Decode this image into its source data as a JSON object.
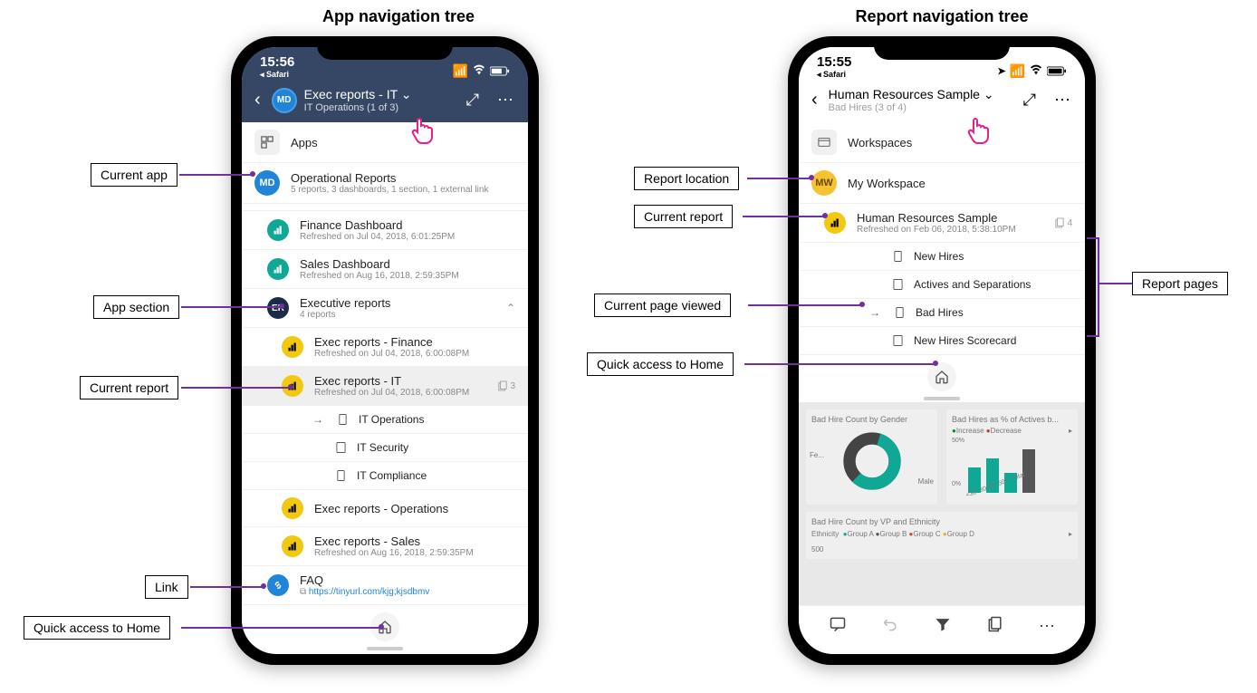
{
  "colors": {
    "header_dark": "#364765",
    "accent_purple": "#7030a0",
    "teal": "#0ea894",
    "yellow": "#f2c811",
    "blue": "#2084d8"
  },
  "titles": {
    "left": "App navigation tree",
    "right": "Report navigation tree"
  },
  "callouts": {
    "current_app": "Current app",
    "app_section": "App section",
    "current_report_left": "Current report",
    "link": "Link",
    "home_left": "Quick access to Home",
    "report_location": "Report location",
    "current_report_right": "Current report",
    "current_page": "Current page viewed",
    "home_right": "Quick access to Home",
    "report_pages": "Report pages"
  },
  "phone1": {
    "status": {
      "time": "15:56",
      "safari": "◂ Safari"
    },
    "header": {
      "avatar": "MD",
      "title": "Exec reports - IT ⌄",
      "subtitle": "IT Operations (1 of 3)"
    },
    "apps_label": "Apps",
    "current_app": {
      "avatar": "MD",
      "title": "Operational Reports",
      "subtitle": "5 reports, 3 dashboards, 1 section, 1 external link"
    },
    "dashboards": [
      {
        "title": "Finance Dashboard",
        "subtitle": "Refreshed on Jul 04, 2018, 6:01:25PM"
      },
      {
        "title": "Sales Dashboard",
        "subtitle": "Refreshed on Aug 16, 2018, 2:59:35PM"
      }
    ],
    "section": {
      "avatar": "ER",
      "title": "Executive reports",
      "subtitle": "4 reports"
    },
    "reports": [
      {
        "title": "Exec reports - Finance",
        "subtitle": "Refreshed on Jul 04, 2018, 6:00:08PM"
      }
    ],
    "current_report": {
      "title": "Exec reports - IT",
      "subtitle": "Refreshed on Jul 04, 2018, 6:00:08PM",
      "page_count": "3"
    },
    "pages": [
      {
        "label": "IT Operations",
        "current": true
      },
      {
        "label": "IT Security",
        "current": false
      },
      {
        "label": "IT Compliance",
        "current": false
      }
    ],
    "more_reports": [
      {
        "title": "Exec reports - Operations",
        "subtitle": ""
      },
      {
        "title": "Exec reports - Sales",
        "subtitle": "Refreshed on Aug 16, 2018, 2:59:35PM"
      }
    ],
    "link": {
      "title": "FAQ",
      "url": "https://tinyurl.com/kjg;kjsdbmv"
    }
  },
  "phone2": {
    "status": {
      "time": "15:55",
      "safari": "◂ Safari"
    },
    "header": {
      "title": "Human Resources Sample ⌄",
      "subtitle": "Bad Hires (3 of 4)"
    },
    "workspaces_label": "Workspaces",
    "my_workspace": {
      "avatar": "MW",
      "title": "My Workspace"
    },
    "current_report": {
      "title": "Human Resources Sample",
      "subtitle": "Refreshed on Feb 06, 2018, 5:38:10PM",
      "page_count": "4"
    },
    "pages": [
      {
        "label": "New Hires",
        "current": false
      },
      {
        "label": "Actives and Separations",
        "current": false
      },
      {
        "label": "Bad Hires",
        "current": true
      },
      {
        "label": "New Hires Scorecard",
        "current": false
      }
    ],
    "preview": {
      "tile1_title": "Bad Hire Count by Gender",
      "tile2_title": "Bad Hires as % of Actives b...",
      "legend_increase": "Increase",
      "legend_decrease": "Decrease",
      "donut_labels": {
        "fe": "Fe...",
        "male": "Male"
      },
      "bar_labels": [
        "<30",
        "30-49",
        "50+",
        "Total"
      ],
      "y_ticks": [
        "50%",
        "0%"
      ],
      "tile3_title": "Bad Hire Count by VP and Ethnicity",
      "ethnicity_label": "Ethnicity",
      "groups": [
        "Group A",
        "Group B",
        "Group C",
        "Group D"
      ],
      "group_colors": [
        "#0ea894",
        "#555555",
        "#d64545",
        "#e8b030"
      ],
      "y_tick_bottom": "500"
    }
  }
}
